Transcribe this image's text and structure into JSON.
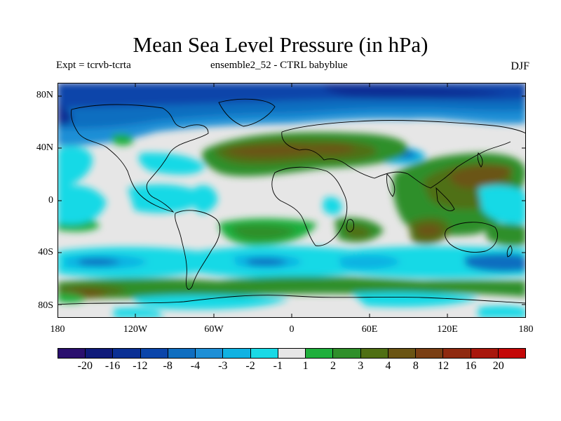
{
  "title": "Mean Sea Level Pressure (in hPa)",
  "subtitle_left": "Expt = tcrvb-tcrta",
  "subtitle_center": "ensemble2_52 - CTRL babyblue",
  "subtitle_right": "DJF",
  "map": {
    "projection": "equirectangular",
    "lon_range": [
      -180,
      180
    ],
    "lat_range": [
      -90,
      90
    ],
    "field": "mean sea level pressure difference",
    "units": "hPa"
  },
  "y_axis_labels": [
    "80N",
    "40N",
    "0",
    "40S",
    "80S"
  ],
  "x_axis_labels": [
    "180",
    "120W",
    "60W",
    "0",
    "60E",
    "120E",
    "180"
  ],
  "colorbar": {
    "colors": [
      "#2a0f6e",
      "#0f1a7a",
      "#0a2f94",
      "#0a45aa",
      "#0f6ec0",
      "#1e8fd6",
      "#10b2e2",
      "#19d9e6",
      "#e6e6e6",
      "#1faf3c",
      "#2f8f2a",
      "#4f6f14",
      "#6a5414",
      "#7a3f14",
      "#8f2a10",
      "#a8170c",
      "#c40808"
    ],
    "labels": [
      "-20",
      "-16",
      "-12",
      "-8",
      "-4",
      "-3",
      "-2",
      "-1",
      "1",
      "2",
      "3",
      "4",
      "8",
      "12",
      "16",
      "20"
    ]
  }
}
